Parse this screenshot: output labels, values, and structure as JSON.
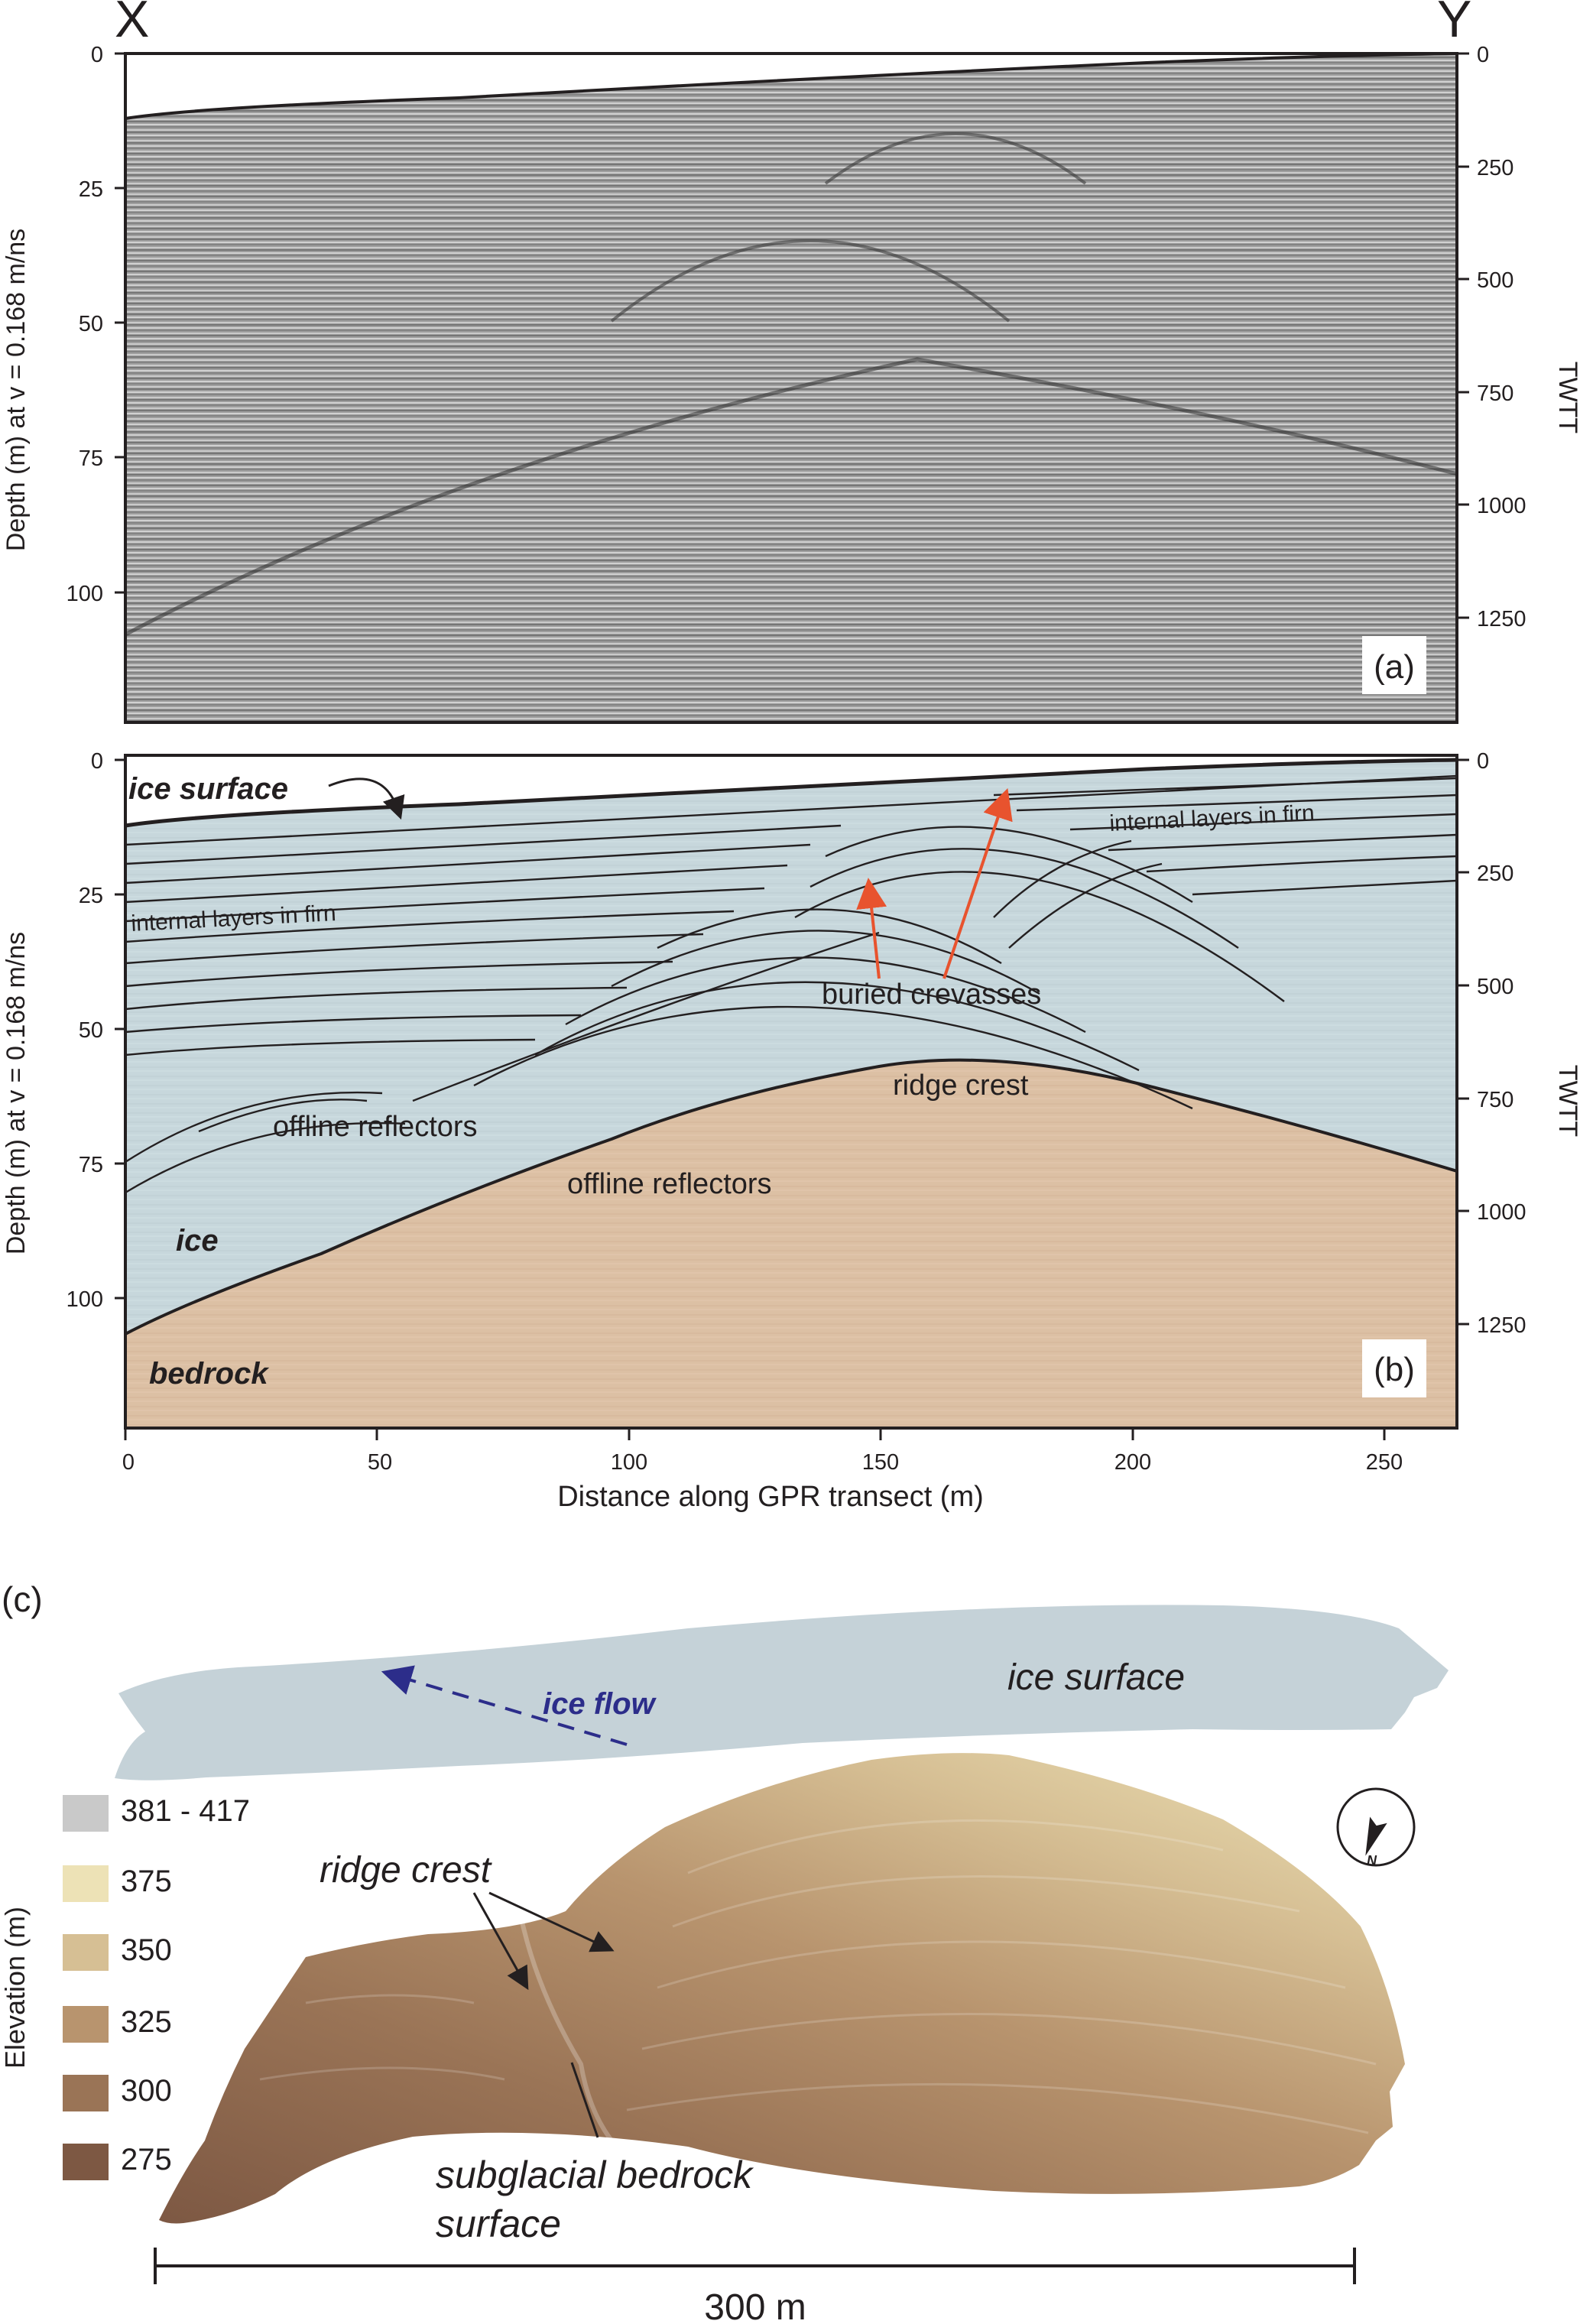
{
  "panel_a": {
    "corner_left": "X",
    "corner_right": "Y",
    "panel_label": "(a)",
    "left_axis_title": "Depth (m) at v = 0.168 m/ns",
    "right_axis_title": "TWTT",
    "left_ticks": [
      "0",
      "25",
      "50",
      "75",
      "100"
    ],
    "right_ticks": [
      "0",
      "250",
      "500",
      "750",
      "1000",
      "1250"
    ]
  },
  "panel_b": {
    "panel_label": "(b)",
    "left_axis_title": "Depth (m) at v = 0.168 m/ns",
    "right_axis_title": "TWTT",
    "left_ticks": [
      "0",
      "25",
      "50",
      "75",
      "100"
    ],
    "right_ticks": [
      "0",
      "250",
      "500",
      "750",
      "1000",
      "1250"
    ],
    "x_ticks": [
      "0",
      "50",
      "100",
      "150",
      "200",
      "250"
    ],
    "x_axis_title": "Distance along GPR transect (m)",
    "annotations": {
      "ice_surface": "ice surface",
      "internal_left": "internal layers in firn",
      "internal_right": "internal layers in firn",
      "buried_crevasses": "buried crevasses",
      "ridge_crest": "ridge crest",
      "offline_upper": "offline reflectors",
      "offline_lower": "offline reflectors",
      "ice": "ice",
      "bedrock": "bedrock"
    }
  },
  "panel_c": {
    "panel_label": "(c)",
    "y_axis_title": "Elevation (m)",
    "ice_surface": "ice surface",
    "ice_flow": "ice flow",
    "ridge_crest": "ridge crest",
    "bedrock_line1": "subglacial bedrock",
    "bedrock_line2": "surface",
    "scale_label": "300 m",
    "compass_letter": "N",
    "legend": [
      {
        "label": "381 - 417",
        "color": "#c9c9c9"
      },
      {
        "label": "375",
        "color": "#ede2b6"
      },
      {
        "label": "350",
        "color": "#d6bf94"
      },
      {
        "label": "325",
        "color": "#b8946e"
      },
      {
        "label": "300",
        "color": "#9a7456"
      },
      {
        "label": "275",
        "color": "#7d5843"
      }
    ]
  },
  "colors": {
    "ice_fill": "#c7d7dc",
    "bedrock_fill": "#dcc0a4",
    "arrow_red": "#e8532e",
    "flow_blue": "#2c2d8a",
    "radar_gray": "#9a9a9a"
  }
}
